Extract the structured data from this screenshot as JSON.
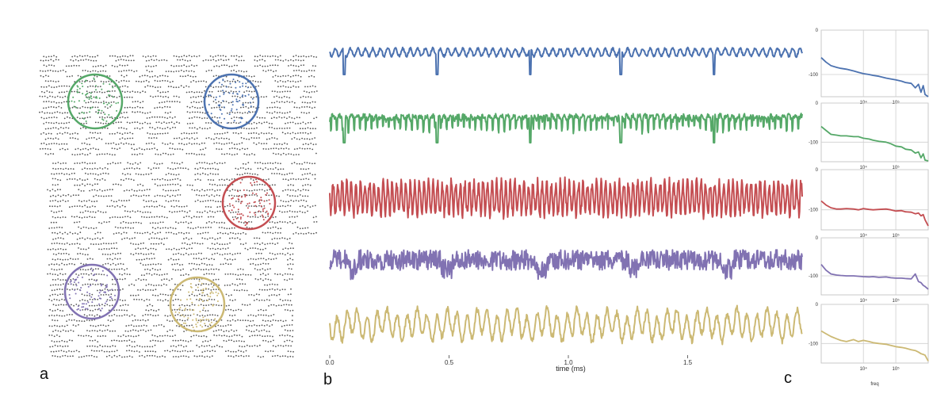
{
  "panels": {
    "a": "a",
    "b": "b",
    "c": "c"
  },
  "colors": {
    "blue": "#4c72b0",
    "green": "#55a868",
    "red": "#c44e52",
    "purple": "#8172b2",
    "yellow": "#ccb974",
    "dots": "#555555",
    "grid": "#cfcfcf"
  },
  "chart_data": [
    {
      "type": "scatter",
      "panel": "a",
      "title": "",
      "circles": [
        {
          "color": "#55a868"
        },
        {
          "color": "#4c72b0"
        },
        {
          "color": "#c44e52"
        },
        {
          "color": "#8172b2"
        },
        {
          "color": "#ccb974"
        }
      ]
    },
    {
      "type": "line",
      "panel": "b",
      "xlabel": "time (ms)",
      "xticks": [
        "0.0",
        "0.5",
        "1.0",
        "1.5"
      ],
      "xtick_values": [
        0.0,
        0.5,
        1.0,
        1.5
      ],
      "xlim": [
        0.0,
        1.98
      ],
      "series": [
        {
          "color": "#4c72b0",
          "pattern": "periodic_spikes",
          "spike_times": [
            0.06,
            0.45,
            0.84,
            1.22,
            1.61
          ]
        },
        {
          "color": "#55a868",
          "pattern": "periodic_spikes",
          "spike_times": [
            0.06,
            0.45,
            0.84,
            1.22,
            1.61
          ]
        },
        {
          "color": "#c44e52",
          "pattern": "dense_oscillation"
        },
        {
          "color": "#8172b2",
          "pattern": "noisy_band"
        },
        {
          "color": "#ccb974",
          "pattern": "irregular_oscillation"
        }
      ]
    },
    {
      "type": "line",
      "panel": "c",
      "xscale": "log",
      "xlabel": "freq",
      "xlim": [
        500,
        1000000
      ],
      "ylim": [
        -150,
        0
      ],
      "yticks": [
        "0",
        "-100"
      ],
      "xticks": [
        "10⁴",
        "10⁵"
      ],
      "xtick_values": [
        10000,
        100000
      ],
      "series": [
        {
          "color": "#4c72b0",
          "x": [
            500,
            700,
            1000,
            1500,
            2000,
            3000,
            5000,
            7000,
            10000,
            15000,
            20000,
            30000,
            50000,
            70000,
            100000,
            150000,
            200000,
            300000,
            400000,
            500000,
            600000,
            700000,
            800000,
            1000000
          ],
          "y": [
            -62,
            -72,
            -80,
            -84,
            -86,
            -88,
            -92,
            -95,
            -98,
            -100,
            -102,
            -104,
            -108,
            -110,
            -112,
            -115,
            -118,
            -120,
            -130,
            -122,
            -140,
            -125,
            -145,
            -150
          ]
        },
        {
          "color": "#55a868",
          "x": [
            500,
            700,
            1000,
            1500,
            2000,
            3000,
            5000,
            7000,
            10000,
            15000,
            20000,
            30000,
            50000,
            70000,
            100000,
            150000,
            200000,
            300000,
            400000,
            500000,
            600000,
            700000,
            800000,
            1000000
          ],
          "y": [
            -60,
            -70,
            -80,
            -82,
            -84,
            -84,
            -86,
            -86,
            -90,
            -92,
            -95,
            -98,
            -100,
            -104,
            -110,
            -112,
            -118,
            -120,
            -128,
            -125,
            -140,
            -130,
            -146,
            -148
          ]
        },
        {
          "color": "#c44e52",
          "x": [
            500,
            700,
            1000,
            1500,
            2000,
            3000,
            5000,
            7000,
            10000,
            15000,
            20000,
            30000,
            50000,
            70000,
            100000,
            150000,
            200000,
            300000,
            400000,
            500000,
            600000,
            700000,
            800000,
            1000000
          ],
          "y": [
            -78,
            -88,
            -95,
            -98,
            -98,
            -97,
            -98,
            -100,
            -97,
            -99,
            -100,
            -99,
            -98,
            -100,
            -103,
            -102,
            -105,
            -106,
            -110,
            -108,
            -115,
            -112,
            -125,
            -140
          ]
        },
        {
          "color": "#8172b2",
          "x": [
            500,
            700,
            1000,
            1500,
            2000,
            3000,
            5000,
            7000,
            10000,
            15000,
            20000,
            30000,
            50000,
            70000,
            100000,
            150000,
            200000,
            300000,
            400000,
            500000,
            600000,
            700000,
            800000,
            1000000
          ],
          "y": [
            -70,
            -85,
            -95,
            -98,
            -99,
            -100,
            -100,
            -101,
            -102,
            -103,
            -102,
            -104,
            -103,
            -105,
            -106,
            -106,
            -107,
            -108,
            -95,
            -115,
            -118,
            -125,
            -128,
            -135
          ]
        },
        {
          "color": "#ccb974",
          "x": [
            500,
            700,
            1000,
            1500,
            2000,
            3000,
            5000,
            7000,
            10000,
            15000,
            20000,
            30000,
            50000,
            70000,
            100000,
            150000,
            200000,
            300000,
            400000,
            500000,
            600000,
            700000,
            800000,
            1000000
          ],
          "y": [
            -68,
            -75,
            -82,
            -88,
            -92,
            -95,
            -90,
            -95,
            -92,
            -95,
            -98,
            -100,
            -102,
            -105,
            -108,
            -110,
            -112,
            -116,
            -118,
            -122,
            -126,
            -128,
            -130,
            -145
          ]
        }
      ]
    }
  ]
}
